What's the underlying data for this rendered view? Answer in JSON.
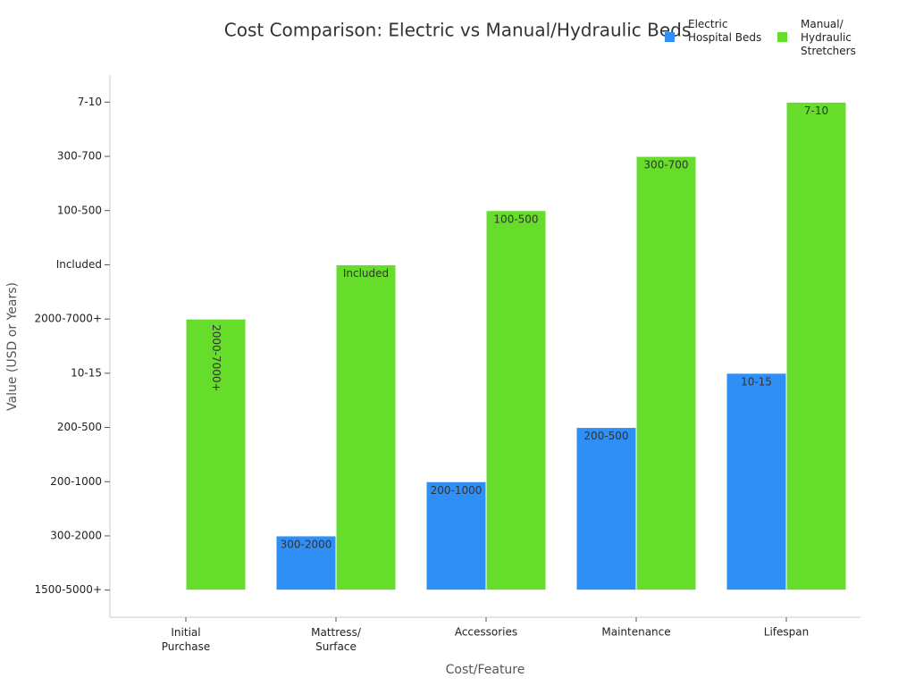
{
  "chart_data": {
    "type": "bar",
    "title": "Cost Comparison: Electric vs Manual/Hydraulic Beds",
    "x_label": "Cost/Feature",
    "y_label": "Value (USD or Years)",
    "categories": [
      "Initial\nPurchase",
      "Mattress/\nSurface",
      "Accessories",
      "Maintenance",
      "Lifespan"
    ],
    "series": [
      {
        "name": "Electric\nHospital Beds",
        "color": "#2f8ff5",
        "values": [
          0,
          1,
          2,
          3,
          4
        ],
        "value_labels": [
          null,
          "300-2000",
          "200-1000",
          "200-500",
          "10-15"
        ]
      },
      {
        "name": "Manual/\nHydraulic\nStretchers",
        "color": "#66dd2a",
        "values": [
          5,
          6,
          7,
          8,
          9
        ],
        "value_labels": [
          "2000-7000+",
          "Included",
          "100-500",
          "300-700",
          "7-10"
        ]
      }
    ],
    "ylim": [
      -0.5,
      9.5
    ],
    "yticks": [
      {
        "value": 0,
        "label": "1500-5000+"
      },
      {
        "value": 1,
        "label": "300-2000"
      },
      {
        "value": 2,
        "label": "200-1000"
      },
      {
        "value": 3,
        "label": "200-500"
      },
      {
        "value": 4,
        "label": "10-15"
      },
      {
        "value": 5,
        "label": "2000-7000+"
      },
      {
        "value": 6,
        "label": "Included"
      },
      {
        "value": 7,
        "label": "100-500"
      },
      {
        "value": 8,
        "label": "300-700"
      },
      {
        "value": 9,
        "label": "7-10"
      }
    ],
    "legend": "upper-right",
    "grid": false
  }
}
